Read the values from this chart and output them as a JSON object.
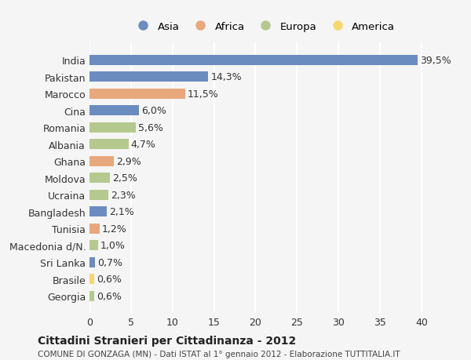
{
  "countries": [
    "India",
    "Pakistan",
    "Marocco",
    "Cina",
    "Romania",
    "Albania",
    "Ghana",
    "Moldova",
    "Ucraina",
    "Bangladesh",
    "Tunisia",
    "Macedonia d/N.",
    "Sri Lanka",
    "Brasile",
    "Georgia"
  ],
  "values": [
    39.5,
    14.3,
    11.5,
    6.0,
    5.6,
    4.7,
    2.9,
    2.5,
    2.3,
    2.1,
    1.2,
    1.0,
    0.7,
    0.6,
    0.6
  ],
  "continents": [
    "Asia",
    "Asia",
    "Africa",
    "Asia",
    "Europa",
    "Europa",
    "Africa",
    "Europa",
    "Europa",
    "Asia",
    "Africa",
    "Europa",
    "Asia",
    "America",
    "Europa"
  ],
  "colors": {
    "Asia": "#6b8cbf",
    "Africa": "#e8a87c",
    "Europa": "#b5c98e",
    "America": "#f5d76e"
  },
  "legend_order": [
    "Asia",
    "Africa",
    "Europa",
    "America"
  ],
  "xlim": [
    0,
    42
  ],
  "xticks": [
    0,
    5,
    10,
    15,
    20,
    25,
    30,
    35,
    40
  ],
  "title": "Cittadini Stranieri per Cittadinanza - 2012",
  "subtitle": "COMUNE DI GONZAGA (MN) - Dati ISTAT al 1° gennaio 2012 - Elaborazione TUTTITALIA.IT",
  "background_color": "#f5f5f5",
  "bar_height": 0.6,
  "grid_color": "#ffffff",
  "label_fontsize": 9,
  "value_fontsize": 9
}
